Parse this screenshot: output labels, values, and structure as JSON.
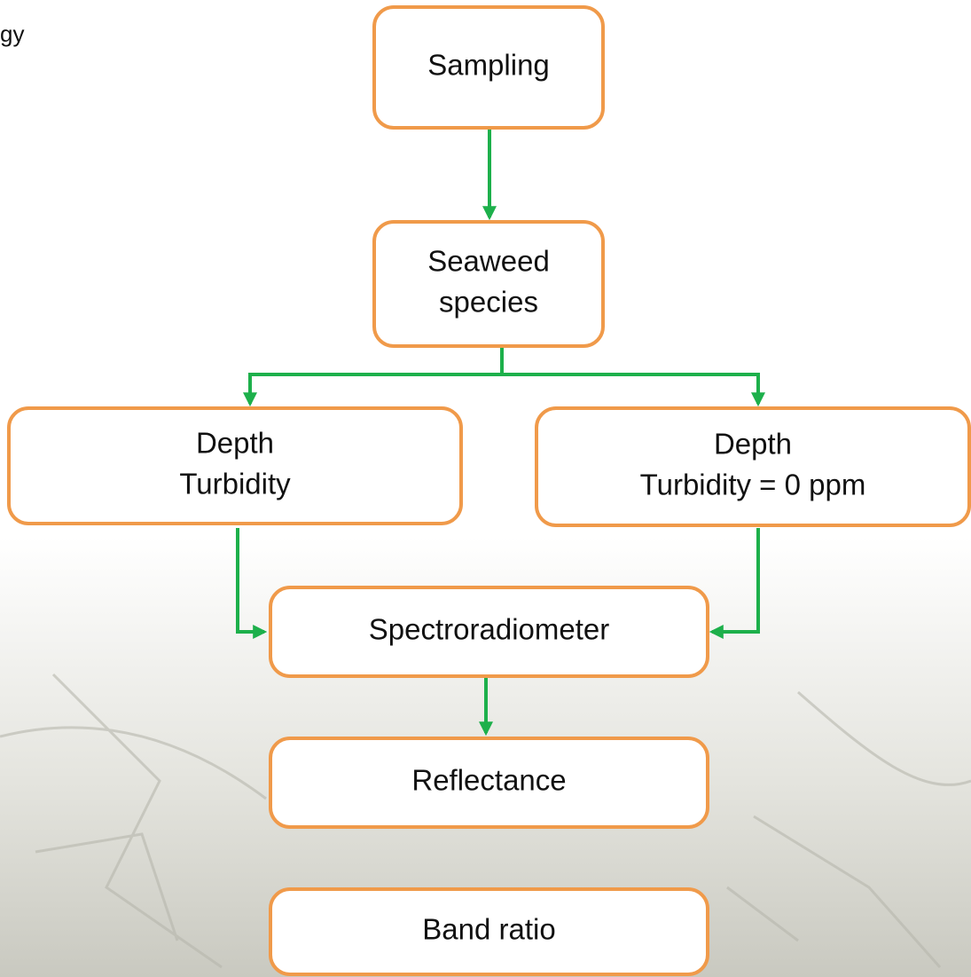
{
  "header": {
    "title_fragment": "gy"
  },
  "nodes": [
    {
      "lines": [
        "Sampling"
      ]
    },
    {
      "lines": [
        "Seaweed",
        "species"
      ]
    },
    {
      "lines": [
        "Depth",
        "Turbidity"
      ]
    },
    {
      "lines": [
        "Depth",
        "Turbidity = 0 ppm"
      ]
    },
    {
      "lines": [
        "Spectroradiometer"
      ]
    },
    {
      "lines": [
        "Reflectance"
      ]
    },
    {
      "lines": [
        "Band ratio"
      ]
    }
  ]
}
